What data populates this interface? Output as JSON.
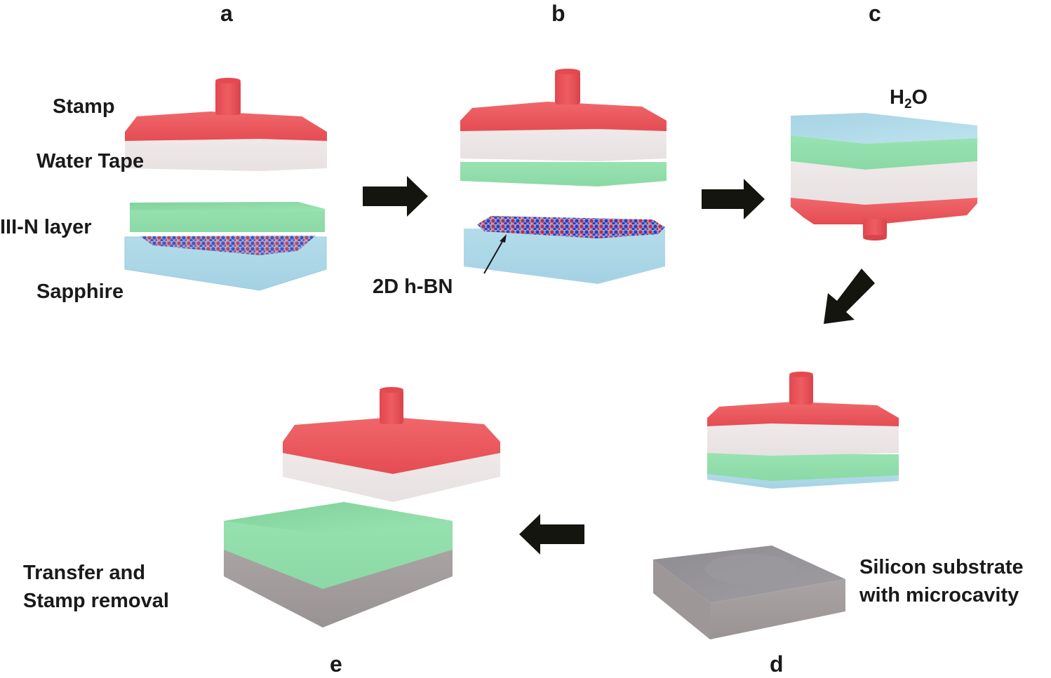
{
  "panels": {
    "a": "a",
    "b": "b",
    "c": "c",
    "d": "d",
    "e": "e"
  },
  "labels": {
    "stamp": "Stamp",
    "water_tape": "Water Tape",
    "iii_n_layer": "III-N layer",
    "sapphire": "Sapphire",
    "hbn": "2D h-BN",
    "h2o_prefix": "H",
    "h2o_sub": "2",
    "h2o_suffix": "O",
    "silicon_line1": "Silicon substrate",
    "silicon_line2": "with microcavity",
    "transfer_line1": "Transfer and",
    "transfer_line2": "Stamp removal"
  },
  "colors": {
    "stamp_red": "#e8545a",
    "water_tape": "#ece6e6",
    "iii_n_green": "#8fdca8",
    "sapphire_blue": "#a9d6e6",
    "silicon_gray": "#a39b9b",
    "arrow": "#151510",
    "hbn_red": "#c8283c",
    "hbn_blue": "#2c3cc0"
  }
}
